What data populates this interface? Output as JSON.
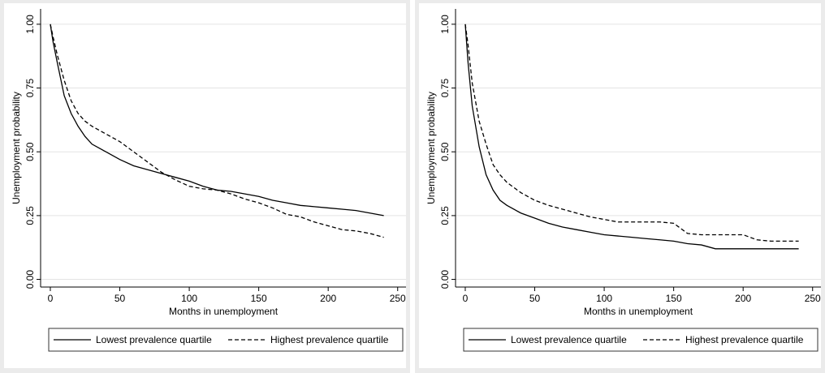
{
  "chart_data": [
    {
      "type": "line",
      "xlabel": "Months in unemployment",
      "ylabel": "Unemployment probability",
      "x": [
        0,
        2,
        5,
        10,
        15,
        20,
        25,
        30,
        40,
        50,
        60,
        70,
        80,
        90,
        100,
        110,
        120,
        130,
        140,
        150,
        160,
        170,
        180,
        190,
        200,
        210,
        220,
        230,
        240
      ],
      "series": [
        {
          "name": "Lowest prevalence quartile",
          "color": "#000000",
          "style": "solid",
          "values": [
            1.0,
            0.93,
            0.85,
            0.72,
            0.65,
            0.6,
            0.56,
            0.53,
            0.5,
            0.47,
            0.445,
            0.43,
            0.415,
            0.4,
            0.385,
            0.365,
            0.35,
            0.345,
            0.335,
            0.325,
            0.31,
            0.3,
            0.29,
            0.285,
            0.28,
            0.275,
            0.27,
            0.26,
            0.25
          ]
        },
        {
          "name": "Highest prevalence quartile",
          "color": "#000000",
          "style": "dashed",
          "values": [
            1.0,
            0.95,
            0.88,
            0.78,
            0.7,
            0.65,
            0.62,
            0.6,
            0.57,
            0.54,
            0.5,
            0.46,
            0.42,
            0.39,
            0.365,
            0.355,
            0.35,
            0.335,
            0.315,
            0.3,
            0.28,
            0.255,
            0.245,
            0.225,
            0.21,
            0.195,
            0.19,
            0.18,
            0.165
          ]
        }
      ],
      "xlim": [
        -7,
        256
      ],
      "ylim": [
        -0.03,
        1.06
      ],
      "xticks": [
        0,
        50,
        100,
        150,
        200,
        250
      ],
      "yticks": [
        {
          "value": 0,
          "label": "0.00"
        },
        {
          "value": 0.25,
          "label": "0.25"
        },
        {
          "value": 0.5,
          "label": "0.50"
        },
        {
          "value": 0.75,
          "label": "0.75"
        },
        {
          "value": 1,
          "label": "1.00"
        }
      ],
      "grid": true,
      "legend": "bottom"
    },
    {
      "type": "line",
      "xlabel": "Months in unemployment",
      "ylabel": "Unemployment probability",
      "x": [
        0,
        2,
        5,
        10,
        15,
        20,
        25,
        30,
        40,
        50,
        60,
        70,
        80,
        90,
        100,
        110,
        120,
        130,
        140,
        150,
        160,
        170,
        180,
        190,
        200,
        210,
        220,
        230,
        240
      ],
      "series": [
        {
          "name": "Lowest prevalence quartile",
          "color": "#000000",
          "style": "solid",
          "values": [
            1.0,
            0.85,
            0.68,
            0.52,
            0.41,
            0.35,
            0.31,
            0.29,
            0.26,
            0.24,
            0.22,
            0.205,
            0.195,
            0.185,
            0.175,
            0.17,
            0.165,
            0.16,
            0.155,
            0.15,
            0.14,
            0.135,
            0.12,
            0.12,
            0.12,
            0.12,
            0.12,
            0.12,
            0.12
          ]
        },
        {
          "name": "Highest prevalence quartile",
          "color": "#000000",
          "style": "dashed",
          "values": [
            1.0,
            0.92,
            0.77,
            0.62,
            0.53,
            0.45,
            0.41,
            0.38,
            0.34,
            0.31,
            0.29,
            0.275,
            0.26,
            0.245,
            0.235,
            0.225,
            0.225,
            0.225,
            0.225,
            0.22,
            0.18,
            0.175,
            0.175,
            0.175,
            0.175,
            0.155,
            0.15,
            0.15,
            0.15
          ]
        }
      ],
      "xlim": [
        -7,
        256
      ],
      "ylim": [
        -0.03,
        1.06
      ],
      "xticks": [
        0,
        50,
        100,
        150,
        200,
        250
      ],
      "yticks": [
        {
          "value": 0,
          "label": "0.00"
        },
        {
          "value": 0.25,
          "label": "0.25"
        },
        {
          "value": 0.5,
          "label": "0.50"
        },
        {
          "value": 0.75,
          "label": "0.75"
        },
        {
          "value": 1,
          "label": "1.00"
        }
      ],
      "grid": true,
      "legend": "bottom"
    }
  ]
}
